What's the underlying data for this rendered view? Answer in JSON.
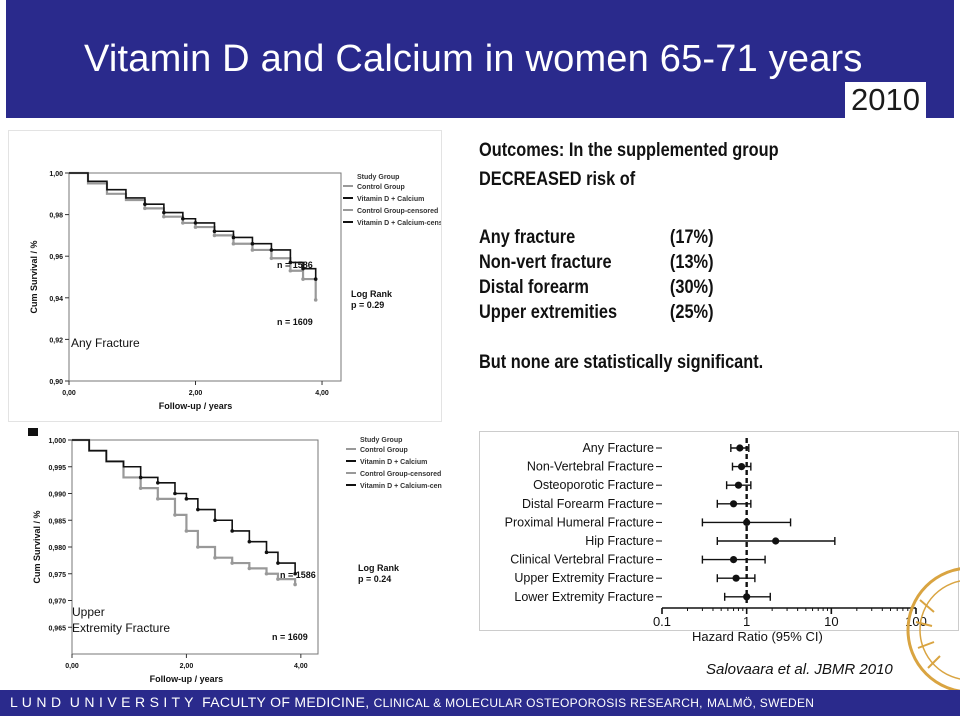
{
  "header": {
    "title": "Vitamin D and Calcium in women 65-71 years",
    "year": "2010"
  },
  "outcomes": {
    "intro_line1": "Outcomes: In the supplemented group",
    "intro_line2": "DECREASED risk of",
    "items": [
      {
        "label": "Any fracture",
        "pct": "(17%)"
      },
      {
        "label": "Non-vert fracture",
        "pct": "(13%)"
      },
      {
        "label": "Distal forearm",
        "pct": "(30%)"
      },
      {
        "label": "Upper extremities",
        "pct": "(25%)"
      }
    ],
    "conclusion": "But none are statistically significant."
  },
  "chart_data": [
    {
      "type": "line",
      "panel_label": "Any Fracture",
      "xlabel": "Follow-up / years",
      "ylabel": "Cum Survival / %",
      "xlim": [
        0,
        4.3
      ],
      "ylim": [
        0.9,
        1.0
      ],
      "x_ticks": [
        "0,00",
        "2,00",
        "4,00"
      ],
      "y_ticks": [
        "0,90",
        "0,92",
        "0,94",
        "0,96",
        "0,98",
        "1,00"
      ],
      "legend_title": "Study Group",
      "legend": [
        "Control Group",
        "Vitamin D + Calcium",
        "Control Group-censored",
        "Vitamin D + Calcium-censored"
      ],
      "annotations": [
        "n = 1586",
        "n = 1609",
        "Log Rank",
        "p = 0.29"
      ],
      "series": [
        {
          "name": "Control Group",
          "color": "#999999",
          "x": [
            0,
            0.3,
            0.6,
            0.9,
            1.2,
            1.5,
            1.8,
            2.0,
            2.3,
            2.6,
            2.9,
            3.2,
            3.5,
            3.7,
            3.9
          ],
          "y": [
            1.0,
            0.995,
            0.99,
            0.987,
            0.983,
            0.979,
            0.976,
            0.974,
            0.97,
            0.966,
            0.963,
            0.959,
            0.953,
            0.949,
            0.939
          ]
        },
        {
          "name": "Vitamin D + Calcium",
          "color": "#111111",
          "x": [
            0,
            0.3,
            0.6,
            0.9,
            1.2,
            1.5,
            1.8,
            2.0,
            2.3,
            2.6,
            2.9,
            3.2,
            3.5,
            3.7,
            3.9
          ],
          "y": [
            1.0,
            0.996,
            0.992,
            0.988,
            0.985,
            0.981,
            0.978,
            0.976,
            0.972,
            0.969,
            0.966,
            0.963,
            0.957,
            0.954,
            0.949
          ]
        }
      ]
    },
    {
      "type": "line",
      "panel_label_line1": "Upper",
      "panel_label_line2": "Extremity Fracture",
      "xlabel": "Follow-up / years",
      "ylabel": "Cum Survival / %",
      "xlim": [
        0,
        4.3
      ],
      "ylim": [
        0.96,
        1.0
      ],
      "x_ticks": [
        "0,00",
        "2,00",
        "4,00"
      ],
      "y_ticks": [
        "0,965",
        "0,970",
        "0,975",
        "0,980",
        "0,985",
        "0,990",
        "0,995",
        "1,000"
      ],
      "legend_title": "Study Group",
      "legend": [
        "Control Group",
        "Vitamin D + Calcium",
        "Control Group-censored",
        "Vitamin D + Calcium-censore"
      ],
      "annotations": [
        "n = 1586",
        "n = 1609",
        "Log Rank",
        "p = 0.24"
      ],
      "series": [
        {
          "name": "Control Group",
          "color": "#999999",
          "x": [
            0,
            0.3,
            0.6,
            0.9,
            1.2,
            1.5,
            1.8,
            2.0,
            2.2,
            2.5,
            2.8,
            3.1,
            3.4,
            3.6,
            3.9
          ],
          "y": [
            1.0,
            0.998,
            0.996,
            0.993,
            0.991,
            0.989,
            0.986,
            0.983,
            0.98,
            0.978,
            0.977,
            0.976,
            0.975,
            0.974,
            0.973
          ]
        },
        {
          "name": "Vitamin D + Calcium",
          "color": "#111111",
          "x": [
            0,
            0.3,
            0.6,
            0.9,
            1.2,
            1.5,
            1.8,
            2.0,
            2.2,
            2.5,
            2.8,
            3.1,
            3.4,
            3.6,
            3.9
          ],
          "y": [
            1.0,
            0.998,
            0.996,
            0.995,
            0.993,
            0.992,
            0.99,
            0.989,
            0.987,
            0.985,
            0.983,
            0.981,
            0.979,
            0.977,
            0.975
          ]
        }
      ]
    },
    {
      "type": "scatter",
      "subtype": "forest",
      "xlabel": "Hazard Ratio (95% CI)",
      "x_scale": "log",
      "x_ticks": [
        "0.1",
        "1",
        "10",
        "100"
      ],
      "reference_line": 1,
      "categories": [
        "Any Fracture",
        "Non-Vertebral Fracture",
        "Osteoporotic Fracture",
        "Distal Forearm Fracture",
        "Proximal Humeral Fracture",
        "Hip Fracture",
        "Clinical Vertebral Fracture",
        "Upper Extremity Fracture",
        "Lower Extremity Fracture"
      ],
      "hr": [
        0.83,
        0.87,
        0.8,
        0.7,
        1.0,
        2.2,
        0.7,
        0.75,
        1.0
      ],
      "lower": [
        0.65,
        0.68,
        0.58,
        0.45,
        0.3,
        0.45,
        0.3,
        0.45,
        0.55
      ],
      "upper": [
        1.06,
        1.12,
        1.12,
        1.12,
        3.3,
        11.0,
        1.65,
        1.25,
        1.9
      ]
    }
  ],
  "citation": "Salovaara et al. JBMR 2010",
  "footer": {
    "lund": "L U N D",
    "university": "U N I V E R S I T Y",
    "faculty": "FACULTY OF MEDICINE,",
    "dept": "CLINICAL & MOLECULAR OSTEOPOROSIS RESEARCH,",
    "city": "MALMÖ, SWEDEN"
  },
  "colors": {
    "brand": "#2a2a8c",
    "control": "#999999",
    "treated": "#111111"
  }
}
